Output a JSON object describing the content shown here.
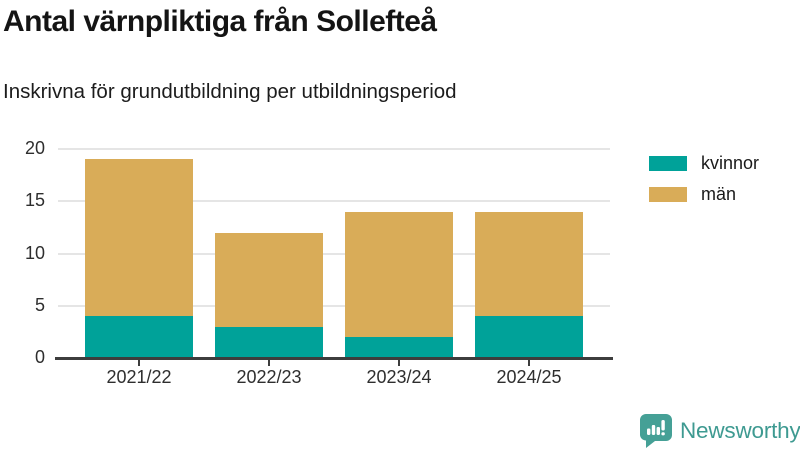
{
  "header": {
    "title": "Antal värnpliktiga från Sollefteå",
    "subtitle": "Inskrivna för grundutbildning per utbildningsperiod"
  },
  "chart_data": {
    "type": "bar",
    "stacked": true,
    "categories": [
      "2021/22",
      "2022/23",
      "2023/24",
      "2024/25"
    ],
    "series": [
      {
        "name": "kvinnor",
        "color": "#00a299",
        "values": [
          4,
          3,
          2,
          4
        ]
      },
      {
        "name": "män",
        "color": "#d9ac58",
        "values": [
          15,
          9,
          12,
          10
        ]
      }
    ],
    "stack_totals": [
      19,
      12,
      14,
      14
    ],
    "title": "Antal värnpliktiga från Sollefteå",
    "subtitle": "Inskrivna för grundutbildning per utbildningsperiod",
    "xlabel": "",
    "ylabel": "",
    "ylim": [
      0,
      20
    ],
    "yticks": [
      0,
      5,
      10,
      15,
      20
    ],
    "grid": "horizontal",
    "legend_position": "top-right"
  },
  "colors": {
    "kvinnor": "#00a299",
    "man": "#d9ac58",
    "axis": "#3d3d3d",
    "gridline": "#e5e5e5",
    "text": "#1a1a1a",
    "brand_teal": "#3e9a91"
  },
  "branding": {
    "logo_text": "Newsworthy",
    "logo_icon": "bar-chart-speech-bubble-icon"
  }
}
